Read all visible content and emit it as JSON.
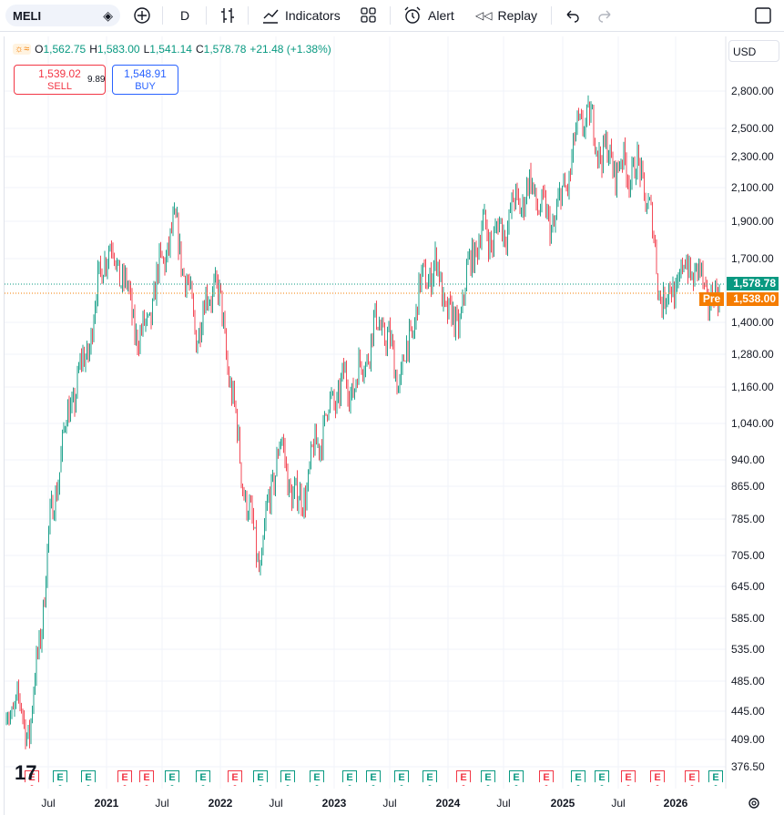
{
  "toolbar": {
    "symbol": "MELI",
    "interval": "D",
    "indicators_label": "Indicators",
    "alert_label": "Alert",
    "replay_label": "Replay"
  },
  "legend": {
    "open_label": "O",
    "open": "1,562.75",
    "high_label": "H",
    "high": "1,583.00",
    "low_label": "L",
    "low": "1,541.14",
    "close_label": "C",
    "close": "1,578.78",
    "change": "+21.48 (+1.38%)"
  },
  "trade": {
    "sell_price": "1,539.02",
    "sell_label": "SELL",
    "spread": "9.89",
    "buy_price": "1,548.91",
    "buy_label": "BUY"
  },
  "currency": "USD",
  "last_price_tag": "1,578.78",
  "pre_label": "Pre",
  "pre_price_tag": "1,538.00",
  "colors": {
    "up": "#089981",
    "down": "#f23645",
    "pre": "#f57c00",
    "accent": "#2962ff"
  },
  "y_axis": [
    "2,800.00",
    "2,500.00",
    "2,300.00",
    "2,100.00",
    "1,900.00",
    "1,700.00",
    "1,400.00",
    "1,280.00",
    "1,160.00",
    "1,040.00",
    "940.00",
    "865.00",
    "785.00",
    "705.00",
    "645.00",
    "585.00",
    "535.00",
    "485.00",
    "445.00",
    "409.00",
    "376.50"
  ],
  "x_axis": [
    "Jul",
    "2021",
    "Jul",
    "2022",
    "Jul",
    "2023",
    "Jul",
    "2024",
    "Jul",
    "2025",
    "Jul",
    "2026"
  ],
  "earnings_markers": [
    "E",
    "E",
    "E",
    "E",
    "E",
    "E",
    "E",
    "E",
    "E",
    "E",
    "E",
    "E",
    "E",
    "E",
    "E",
    "E",
    "E",
    "E",
    "E",
    "E",
    "E",
    "E",
    "E",
    "E",
    "E",
    "E"
  ],
  "chart_data": {
    "type": "candlestick",
    "log_scale": true,
    "x_dates": [
      "2020-05",
      "2020-07",
      "2020-10",
      "2021-01",
      "2021-03",
      "2021-05",
      "2021-07",
      "2021-09",
      "2021-11",
      "2022-01",
      "2022-03",
      "2022-05",
      "2022-06",
      "2022-08",
      "2022-10",
      "2023-01",
      "2023-03",
      "2023-05",
      "2023-07",
      "2023-09",
      "2023-11",
      "2024-01",
      "2024-03",
      "2024-05",
      "2024-07",
      "2024-09",
      "2024-11",
      "2025-01",
      "2025-03",
      "2025-05",
      "2025-06",
      "2025-08",
      "2025-10",
      "2025-12",
      "2026-01",
      "2026-02"
    ],
    "close": [
      430,
      750,
      1150,
      1750,
      1550,
      1400,
      1600,
      1800,
      1450,
      1550,
      1100,
      800,
      680,
      950,
      860,
      1000,
      1220,
      1250,
      1350,
      1250,
      1500,
      1600,
      1450,
      1700,
      1800,
      2050,
      2000,
      1900,
      2200,
      2500,
      2400,
      2400,
      2150,
      2000,
      1650,
      1578.78
    ],
    "ylim": [
      376.5,
      2900
    ]
  }
}
